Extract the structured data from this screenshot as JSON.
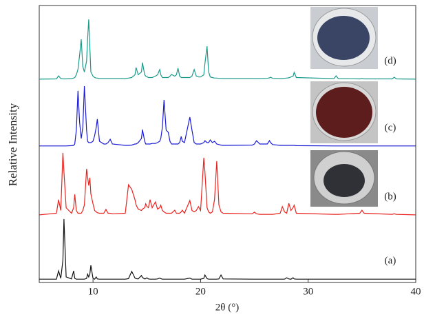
{
  "chart_data": {
    "type": "line",
    "xlabel": "2θ (°)",
    "ylabel": "Relative Intensity",
    "xlim": [
      5,
      40
    ],
    "xticks": [
      10,
      20,
      30,
      40
    ],
    "ylim": [
      0,
      100
    ],
    "x": [
      5,
      6.6,
      6.8,
      7.0,
      7.2,
      7.3,
      7.5,
      8.0,
      8.2,
      8.3,
      8.45,
      8.6,
      8.75,
      8.9,
      9.05,
      9.2,
      9.4,
      9.5,
      9.6,
      9.7,
      9.8,
      10.0,
      10.15,
      10.3,
      10.4,
      10.6,
      11.0,
      11.2,
      11.4,
      11.6,
      11.8,
      13.0,
      13.3,
      13.6,
      13.9,
      14.0,
      14.2,
      14.5,
      14.6,
      14.8,
      14.9,
      15.0,
      15.15,
      15.3,
      15.5,
      15.8,
      16.0,
      16.2,
      16.3,
      16.45,
      16.6,
      16.8,
      17.0,
      17.15,
      17.3,
      17.6,
      17.75,
      17.9,
      18.05,
      18.2,
      18.3,
      18.5,
      19.0,
      19.2,
      19.4,
      19.6,
      19.8,
      20.0,
      20.3,
      20.4,
      20.6,
      20.75,
      20.9,
      21.1,
      21.3,
      21.5,
      21.7,
      21.9,
      22.1,
      24.8,
      25.0,
      25.2,
      25.5,
      26.2,
      26.4,
      26.5,
      26.7,
      27.4,
      27.6,
      27.8,
      28.0,
      28.2,
      28.4,
      28.6,
      28.7,
      28.9,
      32.4,
      32.6,
      32.8,
      34.8,
      35.0,
      35.2,
      37.8,
      38.0,
      38.2,
      40
    ],
    "series": [
      {
        "name": "(a)",
        "color": "#111111",
        "values": [
          1.2,
          1.2,
          4.2,
          1.5,
          8,
          22.9,
          2,
          1.3,
          4.2,
          1.5,
          1.2,
          1.2,
          1.2,
          1.2,
          1.2,
          1.2,
          1.5,
          3.0,
          2,
          3,
          6.2,
          1.5,
          1.2,
          2.0,
          1.3,
          1.2,
          1.2,
          1.2,
          1.2,
          1.2,
          1.2,
          1.2,
          1.4,
          4.0,
          1.6,
          1.4,
          1.3,
          2.5,
          1.8,
          1.3,
          1.4,
          1.7,
          1.3,
          1.2,
          1.2,
          1.2,
          1.3,
          1.6,
          1.4,
          1.2,
          1.2,
          1.2,
          1.2,
          1.2,
          1.2,
          1.2,
          1.2,
          1.2,
          1.2,
          1.2,
          1.2,
          1.2,
          1.6,
          1.2,
          1.2,
          1.2,
          1.2,
          1.2,
          1.5,
          2.7,
          1.4,
          1.2,
          1.2,
          1.2,
          1.2,
          1.2,
          1.3,
          2.7,
          1.3,
          1.2,
          1.2,
          1.2,
          1.2,
          1.2,
          1.2,
          1.2,
          1.2,
          1.2,
          1.2,
          1.2,
          1.7,
          1.3,
          1.2,
          1.7,
          1.3,
          1.2,
          1.2,
          1.2,
          1.2,
          1.2,
          1.2,
          1.2,
          1.2,
          1.2,
          1.2,
          1.2
        ]
      },
      {
        "name": "(b)",
        "color": "#e8231e",
        "values": [
          24.4,
          25,
          29.9,
          26,
          46.8,
          40,
          27,
          25,
          27,
          31.8,
          26,
          25,
          25,
          25,
          26,
          28,
          41.0,
          38,
          35,
          37.8,
          32,
          28.4,
          26,
          25.5,
          25.2,
          25,
          25,
          26.4,
          25,
          25,
          24.8,
          25,
          35.3,
          33.6,
          29.9,
          28,
          26.5,
          26,
          26.5,
          27,
          28.4,
          27.5,
          27,
          29.9,
          27,
          29.1,
          26.5,
          27,
          27.9,
          26,
          25.5,
          25,
          25,
          25,
          25,
          26.1,
          25,
          25,
          25,
          25.5,
          26.1,
          25,
          29.6,
          26,
          25.5,
          26,
          27.4,
          26,
          45.0,
          40,
          27,
          25.5,
          25,
          25.5,
          30,
          43.8,
          28,
          25.5,
          25,
          24.8,
          25.4,
          24.8,
          24.6,
          24.6,
          24.6,
          24.6,
          24.6,
          25,
          27.4,
          25.5,
          25,
          28.6,
          26,
          27,
          27.9,
          25,
          24.6,
          24.6,
          24.6,
          25,
          26.1,
          25,
          24.6,
          24.8,
          24.6,
          24.4
        ]
      },
      {
        "name": "(c)",
        "color": "#1a1ad6",
        "values": [
          49.3,
          49.3,
          49.3,
          49.3,
          49.3,
          49.3,
          49.3,
          49.4,
          49.5,
          50,
          55,
          69.2,
          58,
          52,
          56,
          70.9,
          55,
          51,
          50.5,
          50.5,
          50.5,
          51,
          53,
          56,
          59.0,
          51,
          50,
          50,
          50.5,
          51.7,
          50,
          49.5,
          49.5,
          49.6,
          50,
          50,
          50.5,
          52,
          55.2,
          51,
          50,
          50,
          50,
          50,
          50.2,
          50.2,
          50.5,
          51,
          52,
          56,
          65.9,
          55,
          54.2,
          51,
          50,
          50,
          50,
          50,
          50.5,
          52.7,
          51,
          50.5,
          59.7,
          55,
          50.5,
          50,
          50,
          50,
          50.5,
          51.2,
          50.5,
          50.5,
          51.5,
          50.5,
          51.0,
          50,
          49.8,
          49.6,
          49.5,
          49.6,
          50,
          51.2,
          50,
          50,
          51.2,
          50.5,
          49.8,
          49.5,
          49.5,
          49.5,
          49.5,
          49.5,
          49.5,
          49.5,
          49.5,
          49.4,
          49.3,
          49.3,
          49.3,
          49.3,
          49.3,
          49.3,
          49.3,
          49.3,
          49.3,
          49.3
        ]
      },
      {
        "name": "(d)",
        "color": "#1a9b8a",
        "values": [
          73.4,
          73.5,
          74.6,
          73.6,
          73.5,
          73.5,
          73.5,
          73.6,
          73.8,
          74,
          75,
          77,
          82,
          87.8,
          78,
          76,
          80,
          88,
          95.0,
          85,
          76,
          74.5,
          74,
          73.8,
          73.8,
          73.6,
          73.6,
          73.6,
          73.6,
          73.6,
          73.6,
          73.6,
          73.8,
          74,
          75,
          77.6,
          75,
          76,
          79.4,
          75,
          74.5,
          74.3,
          74,
          74,
          74,
          74.5,
          75,
          76.9,
          75,
          74,
          74,
          74,
          74,
          74.5,
          75.1,
          74.5,
          75,
          77.4,
          74.5,
          74,
          74,
          74,
          74,
          74.5,
          76.9,
          74.5,
          74.2,
          74.2,
          75,
          79,
          85.3,
          76,
          74.2,
          74,
          73.8,
          73.8,
          73.7,
          73.7,
          73.6,
          73.6,
          73.6,
          73.6,
          73.6,
          73.7,
          73.9,
          74.1,
          73.7,
          73.6,
          73.6,
          73.7,
          73.8,
          73.9,
          74.2,
          74.5,
          75.9,
          74,
          73.6,
          74.6,
          73.6,
          73.5,
          73.6,
          73.5,
          73.5,
          74.1,
          73.5,
          73.4
        ]
      }
    ]
  }
}
